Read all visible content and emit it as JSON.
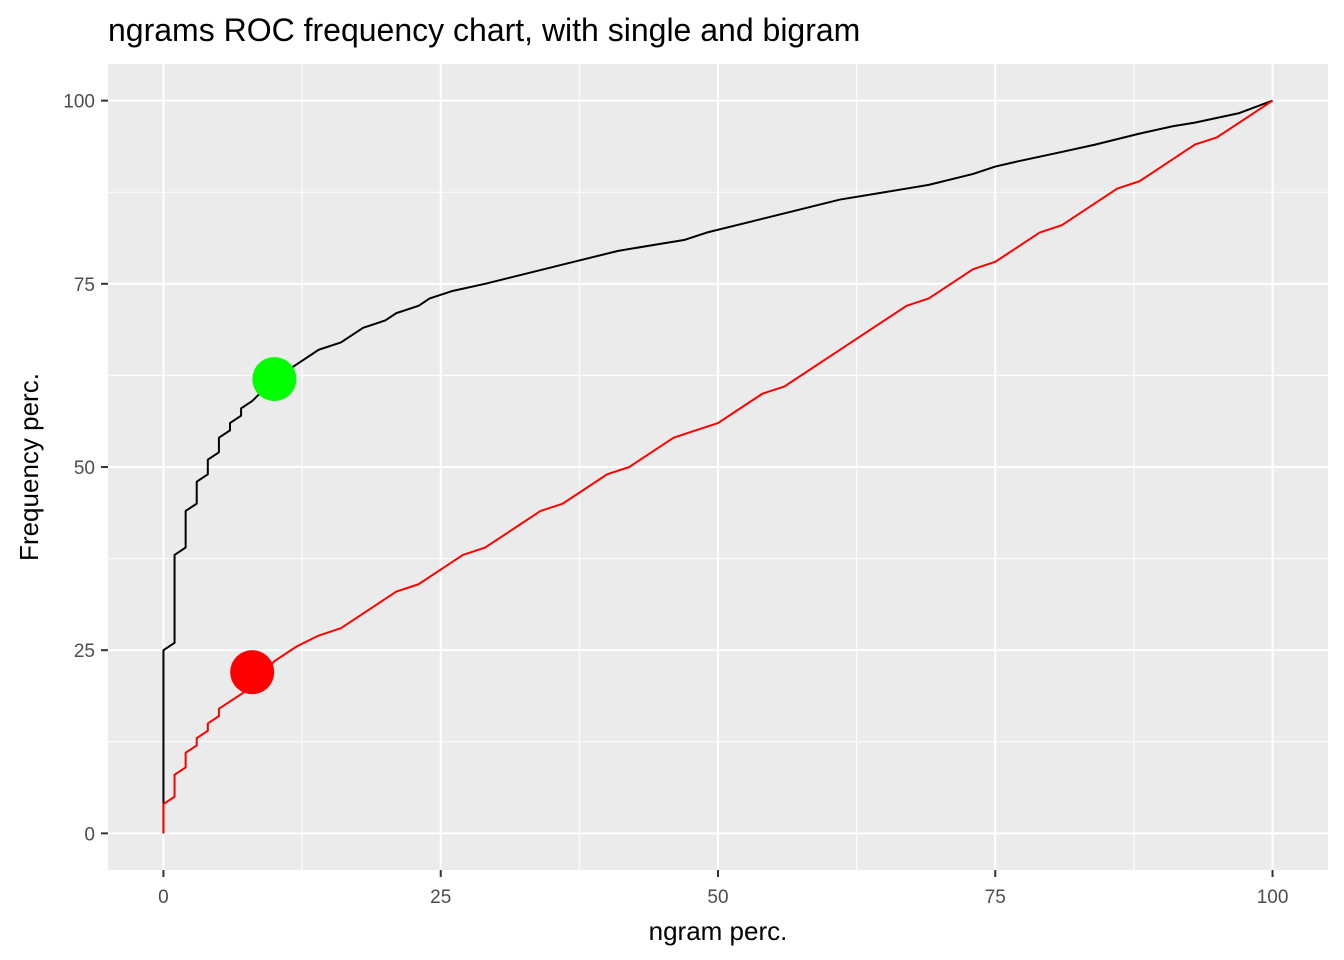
{
  "chart_data": {
    "type": "line",
    "title": "ngrams ROC frequency chart, with single and bigram",
    "xlabel": "ngram perc.",
    "ylabel": "Frequency perc.",
    "xlim": [
      -5,
      105
    ],
    "ylim": [
      -5,
      105
    ],
    "x_ticks": [
      0,
      25,
      50,
      75,
      100
    ],
    "y_ticks": [
      0,
      25,
      50,
      75,
      100
    ],
    "x_tick_labels": [
      "0",
      "25",
      "50",
      "75",
      "100"
    ],
    "y_tick_labels": [
      "0",
      "25",
      "50",
      "75",
      "100"
    ],
    "grid": true,
    "background": "#ebebeb",
    "series": [
      {
        "color": "#000000",
        "x": [
          0,
          0,
          1,
          1,
          2,
          2,
          3,
          3,
          4,
          4,
          5,
          5,
          6,
          6,
          7,
          7,
          8,
          10,
          12,
          14,
          16,
          18,
          20,
          21,
          23,
          24,
          26,
          29,
          33,
          37,
          41,
          45,
          47,
          49,
          53,
          57,
          61,
          65,
          67,
          69,
          73,
          75,
          77,
          81,
          84,
          88,
          91,
          93,
          97,
          100
        ],
        "y": [
          0,
          25,
          26,
          38,
          39,
          44,
          45,
          48,
          49,
          51,
          52,
          54,
          55,
          56,
          57,
          58,
          59,
          62,
          64,
          66,
          67,
          69,
          70,
          71,
          72,
          73,
          74,
          75,
          76.5,
          78,
          79.5,
          80.5,
          81,
          82,
          83.5,
          85,
          86.5,
          87.5,
          88,
          88.5,
          90,
          91,
          91.7,
          93,
          94,
          95.5,
          96.5,
          97,
          98.3,
          100
        ]
      },
      {
        "color": "#ff0000",
        "x": [
          0,
          0,
          1,
          1,
          2,
          2,
          3,
          3,
          4,
          4,
          5,
          5,
          6,
          7,
          8,
          10,
          12,
          14,
          16,
          18,
          21,
          23,
          25,
          27,
          29,
          32,
          34,
          36,
          38,
          40,
          42,
          44,
          46,
          48,
          50,
          52,
          54,
          56,
          58,
          60,
          62,
          65,
          67,
          69,
          73,
          75,
          77,
          79,
          81,
          83,
          86,
          88,
          93,
          95,
          100
        ],
        "y": [
          0,
          4,
          5,
          8,
          9,
          11,
          12,
          13,
          14,
          15,
          16,
          17,
          18,
          19,
          20,
          23.5,
          25.5,
          27,
          28,
          30,
          33,
          34,
          36,
          38,
          39,
          42,
          44,
          45,
          47,
          49,
          50,
          52,
          54,
          55,
          56,
          58,
          60,
          61,
          63,
          65,
          67,
          70,
          72,
          73,
          77,
          78,
          80,
          82,
          83,
          85,
          88,
          89,
          94,
          95,
          100
        ]
      }
    ],
    "markers": [
      {
        "x": 10,
        "y": 62,
        "color": "#00ff00"
      },
      {
        "x": 8,
        "y": 22,
        "color": "#ff0000"
      }
    ]
  }
}
